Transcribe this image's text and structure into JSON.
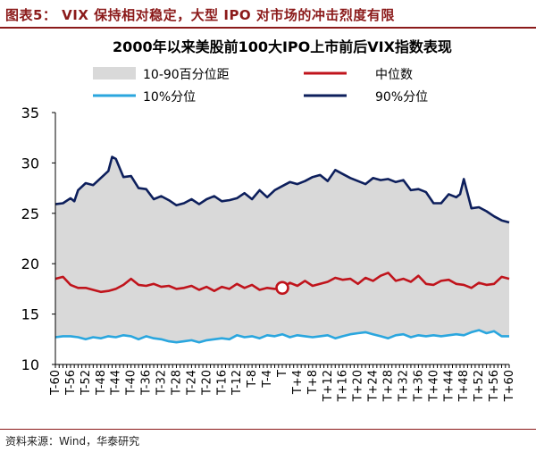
{
  "figure": {
    "title": "图表5：  VIX 保持相对稳定，大型 IPO 对市场的冲击烈度有限",
    "source": "资料来源：Wind，华泰研究"
  },
  "colors": {
    "band": "#d9d9d9",
    "median": "#c0141c",
    "p10": "#2aa6de",
    "p90": "#0d1f5c",
    "accent": "#8b1a1a"
  },
  "chart_data": {
    "type": "area",
    "title": "2000年以来美股前100大IPO上市前后VIX指数表现",
    "xlabel": "",
    "ylabel": "",
    "ylim": [
      10,
      35
    ],
    "yticks": [
      10,
      15,
      20,
      25,
      30,
      35
    ],
    "xlim": [
      -60,
      60
    ],
    "xtick_labels": [
      "T-60",
      "T-56",
      "T-52",
      "T-48",
      "T-44",
      "T-40",
      "T-36",
      "T-32",
      "T-28",
      "T-24",
      "T-20",
      "T-16",
      "T-12",
      "T-8",
      "T-4",
      "T",
      "T+4",
      "T+8",
      "T+12",
      "T+16",
      "T+20",
      "T+24",
      "T+28",
      "T+32",
      "T+36",
      "T+40",
      "T+44",
      "T+48",
      "T+52",
      "T+56",
      "T+60"
    ],
    "grid": false,
    "legend_position": "top",
    "legend": {
      "band": "10-90百分位距",
      "median": "中位数",
      "p10": "10%分位",
      "p90": "90%分位"
    },
    "highlight": {
      "x": 0,
      "y": 17.6,
      "series": "中位数"
    },
    "series": [
      {
        "name": "90%分位",
        "x": [
          -60,
          -58,
          -56,
          -55,
          -54,
          -52,
          -50,
          -48,
          -46,
          -45,
          -44,
          -42,
          -40,
          -38,
          -36,
          -34,
          -32,
          -30,
          -28,
          -26,
          -24,
          -22,
          -20,
          -18,
          -16,
          -14,
          -12,
          -10,
          -8,
          -6,
          -4,
          -2,
          0,
          2,
          4,
          6,
          8,
          10,
          12,
          14,
          16,
          18,
          20,
          22,
          24,
          26,
          28,
          30,
          32,
          34,
          36,
          38,
          40,
          42,
          44,
          46,
          47,
          48,
          50,
          52,
          54,
          56,
          58,
          60
        ],
        "values": [
          25.9,
          26.0,
          26.5,
          26.2,
          27.3,
          28.0,
          27.8,
          28.5,
          29.2,
          30.6,
          30.4,
          28.6,
          28.7,
          27.5,
          27.4,
          26.4,
          26.7,
          26.3,
          25.8,
          26.0,
          26.4,
          25.9,
          26.4,
          26.7,
          26.2,
          26.3,
          26.5,
          27.0,
          26.4,
          27.3,
          26.6,
          27.3,
          27.7,
          28.1,
          27.9,
          28.2,
          28.6,
          28.8,
          28.2,
          29.3,
          28.9,
          28.5,
          28.2,
          27.9,
          28.5,
          28.3,
          28.4,
          28.1,
          28.3,
          27.3,
          27.4,
          27.1,
          26.0,
          26.0,
          26.9,
          26.6,
          26.9,
          28.4,
          25.5,
          25.6,
          25.2,
          24.7,
          24.3,
          24.1
        ]
      },
      {
        "name": "中位数",
        "x": [
          -60,
          -58,
          -56,
          -54,
          -52,
          -50,
          -48,
          -46,
          -44,
          -42,
          -40,
          -38,
          -36,
          -34,
          -32,
          -30,
          -28,
          -26,
          -24,
          -22,
          -20,
          -18,
          -16,
          -14,
          -12,
          -10,
          -8,
          -6,
          -4,
          -2,
          0,
          2,
          4,
          6,
          8,
          10,
          12,
          14,
          16,
          18,
          20,
          22,
          24,
          26,
          28,
          30,
          32,
          34,
          36,
          38,
          40,
          42,
          44,
          46,
          48,
          50,
          52,
          54,
          56,
          58,
          60
        ],
        "values": [
          18.5,
          18.7,
          17.9,
          17.6,
          17.6,
          17.4,
          17.2,
          17.3,
          17.5,
          17.9,
          18.5,
          17.9,
          17.8,
          18.0,
          17.7,
          17.8,
          17.5,
          17.6,
          17.8,
          17.4,
          17.7,
          17.3,
          17.7,
          17.5,
          18.0,
          17.6,
          17.9,
          17.4,
          17.6,
          17.5,
          17.6,
          18.1,
          17.8,
          18.3,
          17.8,
          18.0,
          18.2,
          18.6,
          18.4,
          18.5,
          18.0,
          18.6,
          18.3,
          18.8,
          19.1,
          18.3,
          18.5,
          18.2,
          18.8,
          18.0,
          17.9,
          18.3,
          18.4,
          18.0,
          17.9,
          17.6,
          18.1,
          17.9,
          18.0,
          18.7,
          18.5
        ]
      },
      {
        "name": "10%分位",
        "x": [
          -60,
          -58,
          -56,
          -54,
          -52,
          -50,
          -48,
          -46,
          -44,
          -42,
          -40,
          -38,
          -36,
          -34,
          -32,
          -30,
          -28,
          -26,
          -24,
          -22,
          -20,
          -18,
          -16,
          -14,
          -12,
          -10,
          -8,
          -6,
          -4,
          -2,
          0,
          2,
          4,
          6,
          8,
          10,
          12,
          14,
          16,
          18,
          20,
          22,
          24,
          26,
          28,
          30,
          32,
          34,
          36,
          38,
          40,
          42,
          44,
          46,
          48,
          50,
          52,
          54,
          56,
          58,
          60
        ],
        "values": [
          12.7,
          12.8,
          12.8,
          12.7,
          12.5,
          12.7,
          12.6,
          12.8,
          12.7,
          12.9,
          12.8,
          12.5,
          12.8,
          12.6,
          12.5,
          12.3,
          12.2,
          12.3,
          12.4,
          12.2,
          12.4,
          12.5,
          12.6,
          12.5,
          12.9,
          12.7,
          12.8,
          12.6,
          12.9,
          12.8,
          13.0,
          12.7,
          12.9,
          12.8,
          12.7,
          12.8,
          12.9,
          12.6,
          12.8,
          13.0,
          13.1,
          13.2,
          13.0,
          12.8,
          12.6,
          12.9,
          13.0,
          12.7,
          12.9,
          12.8,
          12.9,
          12.8,
          12.9,
          13.0,
          12.9,
          13.2,
          13.4,
          13.1,
          13.3,
          12.8,
          12.8
        ]
      }
    ]
  }
}
